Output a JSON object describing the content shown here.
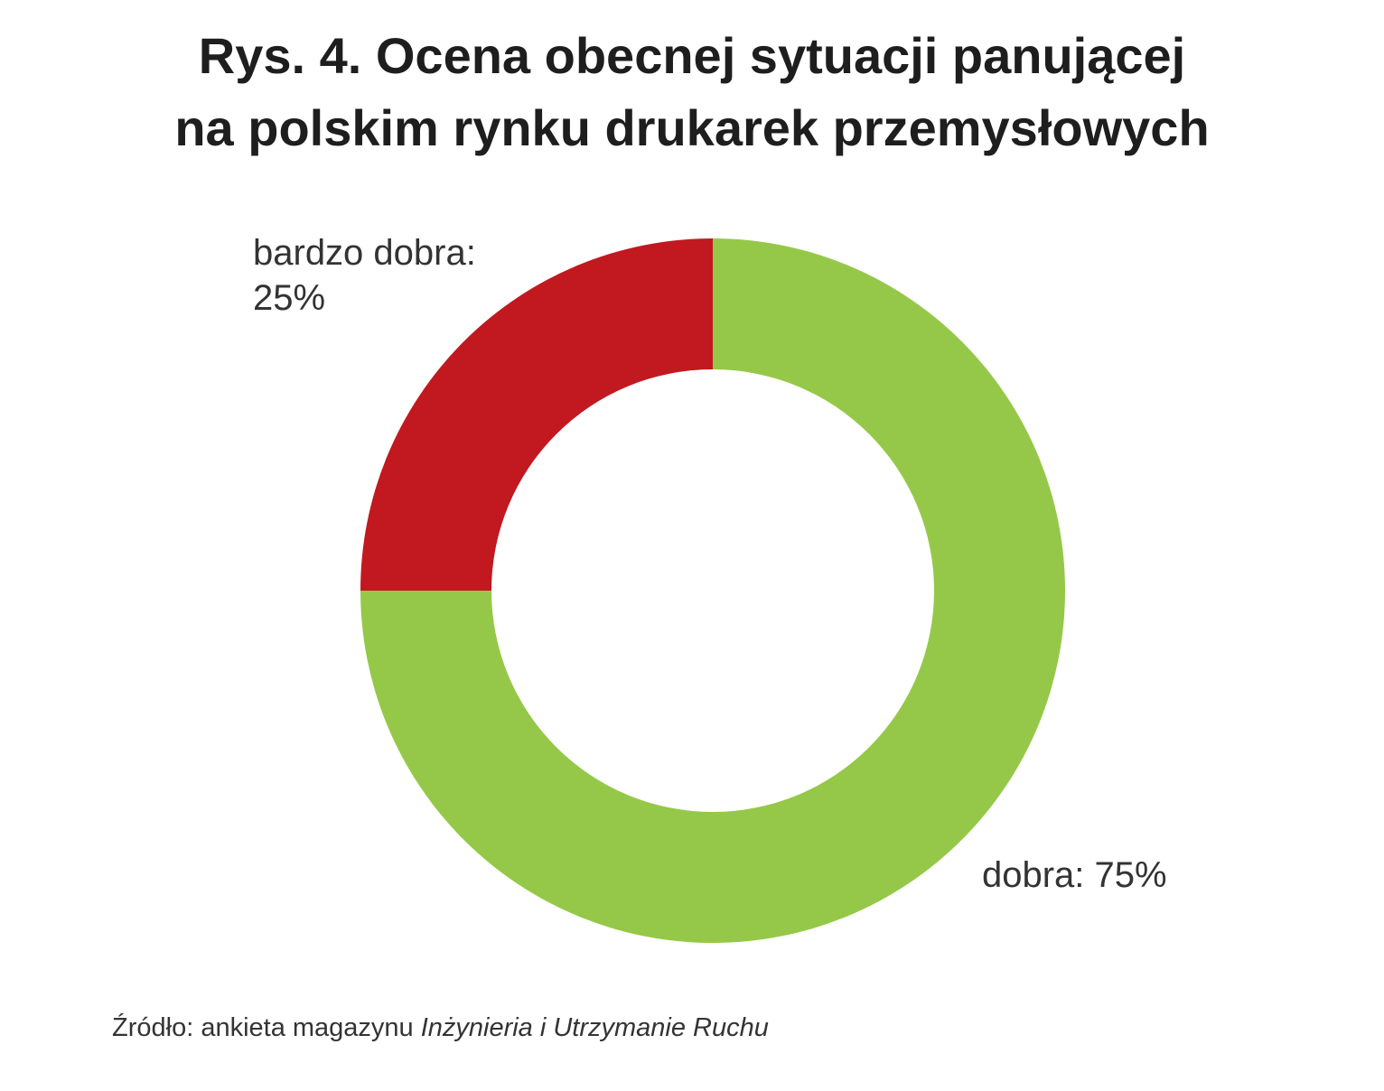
{
  "chart_data": {
    "type": "pie",
    "title": [
      "Rys. 4. Ocena obecnej sytuacji panującej",
      "na polskim rynku drukarek przemysłowych"
    ],
    "labels": [
      "bardzo dobra: 25%",
      "dobra: 75%"
    ],
    "values": [
      25,
      75
    ],
    "colors": [
      "#c1191f",
      "#95c848"
    ],
    "donut": true,
    "source": {
      "text": "Źródło: ankieta magazynu",
      "italic": "Inżynieria i Utrzymanie Ruchu"
    }
  }
}
